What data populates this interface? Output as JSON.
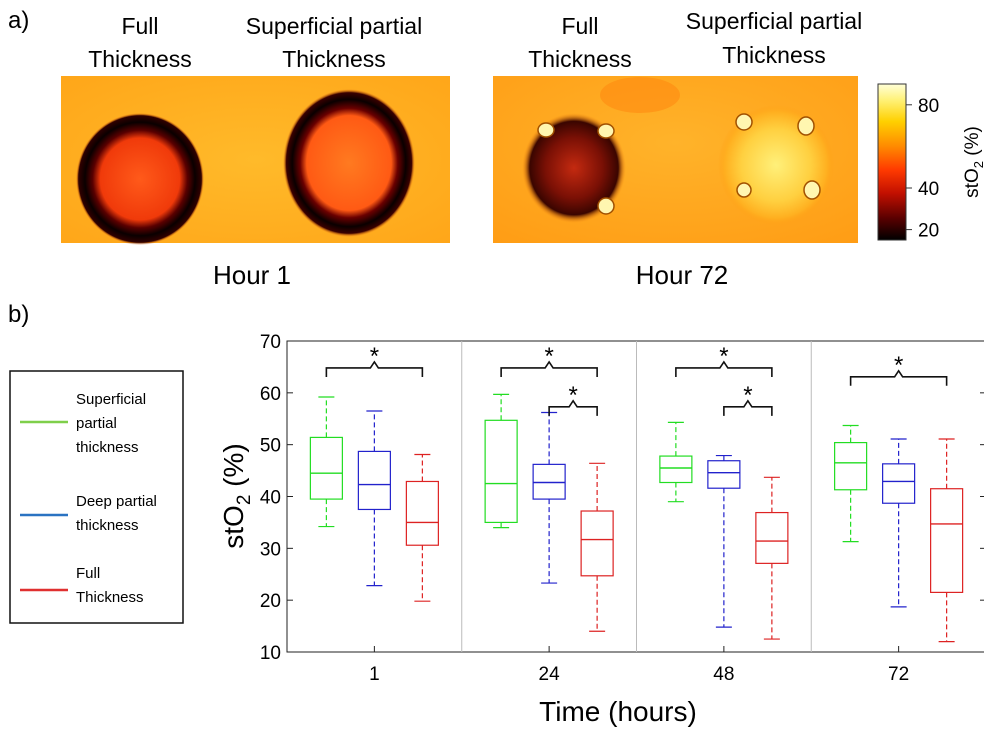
{
  "panel_a": {
    "label": "a)",
    "sub_labels": [
      "Hour 1",
      "Hour 72"
    ],
    "region_labels": [
      [
        "Full",
        "Thickness"
      ],
      [
        "Superficial partial",
        "Thickness"
      ],
      [
        "Full",
        "Thickness"
      ],
      [
        "Superficial partial",
        "Thickness"
      ]
    ],
    "colorbar": {
      "title": "stO",
      "subscript": "2",
      "unit": " (%)",
      "ticks": [
        80,
        40,
        20
      ],
      "range": [
        15,
        90
      ],
      "colors": [
        "#000000",
        "#5a0000",
        "#c21000",
        "#ff3a00",
        "#ff8a00",
        "#ffd000",
        "#fff27a",
        "#ffffd8"
      ]
    }
  },
  "panel_b": {
    "label": "b)",
    "legend": [
      {
        "lines": [
          "Superficial",
          "partial",
          "thickness"
        ],
        "color": "#7fcf4a"
      },
      {
        "lines": [
          "Deep partial",
          "thickness"
        ],
        "color": "#2a73c2"
      },
      {
        "lines": [
          "Full",
          "Thickness"
        ],
        "color": "#e03030"
      }
    ]
  },
  "chart_data": {
    "type": "box",
    "xlabel": "Time (hours)",
    "ylabel_main": "stO",
    "ylabel_sub": "2",
    "ylabel_unit": " (%)",
    "ylim": [
      10,
      70
    ],
    "yticks": [
      10,
      20,
      30,
      40,
      50,
      60,
      70
    ],
    "categories": [
      "1",
      "24",
      "48",
      "72"
    ],
    "series": [
      {
        "name": "Superficial partial thickness",
        "color": "#22dd22",
        "boxes": [
          {
            "min": 34.2,
            "q1": 39.5,
            "median": 44.5,
            "q3": 51.4,
            "max": 59.2
          },
          {
            "min": 34.0,
            "q1": 35.0,
            "median": 42.5,
            "q3": 54.7,
            "max": 59.7
          },
          {
            "min": 39.0,
            "q1": 42.7,
            "median": 45.5,
            "q3": 47.8,
            "max": 54.3
          },
          {
            "min": 31.3,
            "q1": 41.3,
            "median": 46.5,
            "q3": 50.4,
            "max": 53.7
          }
        ]
      },
      {
        "name": "Deep partial thickness",
        "color": "#2222cc",
        "boxes": [
          {
            "min": 22.8,
            "q1": 37.5,
            "median": 42.3,
            "q3": 48.7,
            "max": 56.5
          },
          {
            "min": 23.3,
            "q1": 39.5,
            "median": 42.7,
            "q3": 46.2,
            "max": 56.2
          },
          {
            "min": 14.8,
            "q1": 41.6,
            "median": 44.6,
            "q3": 46.9,
            "max": 47.9
          },
          {
            "min": 18.7,
            "q1": 38.7,
            "median": 42.9,
            "q3": 46.3,
            "max": 51.1
          }
        ]
      },
      {
        "name": "Full Thickness",
        "color": "#dd2222",
        "boxes": [
          {
            "min": 19.8,
            "q1": 30.6,
            "median": 35.0,
            "q3": 42.9,
            "max": 48.1
          },
          {
            "min": 14.0,
            "q1": 24.7,
            "median": 31.7,
            "q3": 37.2,
            "max": 46.4
          },
          {
            "min": 12.5,
            "q1": 27.1,
            "median": 31.4,
            "q3": 36.9,
            "max": 43.7
          },
          {
            "min": 12.0,
            "q1": 21.5,
            "median": 34.7,
            "q3": 41.5,
            "max": 51.1
          }
        ]
      }
    ],
    "significance": [
      {
        "category": 0,
        "from": 0,
        "to": 2,
        "y": 64.8,
        "label": "*"
      },
      {
        "category": 1,
        "from": 0,
        "to": 2,
        "y": 64.8,
        "label": "*"
      },
      {
        "category": 1,
        "from": 1,
        "to": 2,
        "y": 57.3,
        "label": "*"
      },
      {
        "category": 2,
        "from": 0,
        "to": 2,
        "y": 64.8,
        "label": "*"
      },
      {
        "category": 2,
        "from": 1,
        "to": 2,
        "y": 57.3,
        "label": "*"
      },
      {
        "category": 3,
        "from": 0,
        "to": 2,
        "y": 63.1,
        "label": "*"
      }
    ],
    "grid": false,
    "legend_position": "left-outside"
  }
}
